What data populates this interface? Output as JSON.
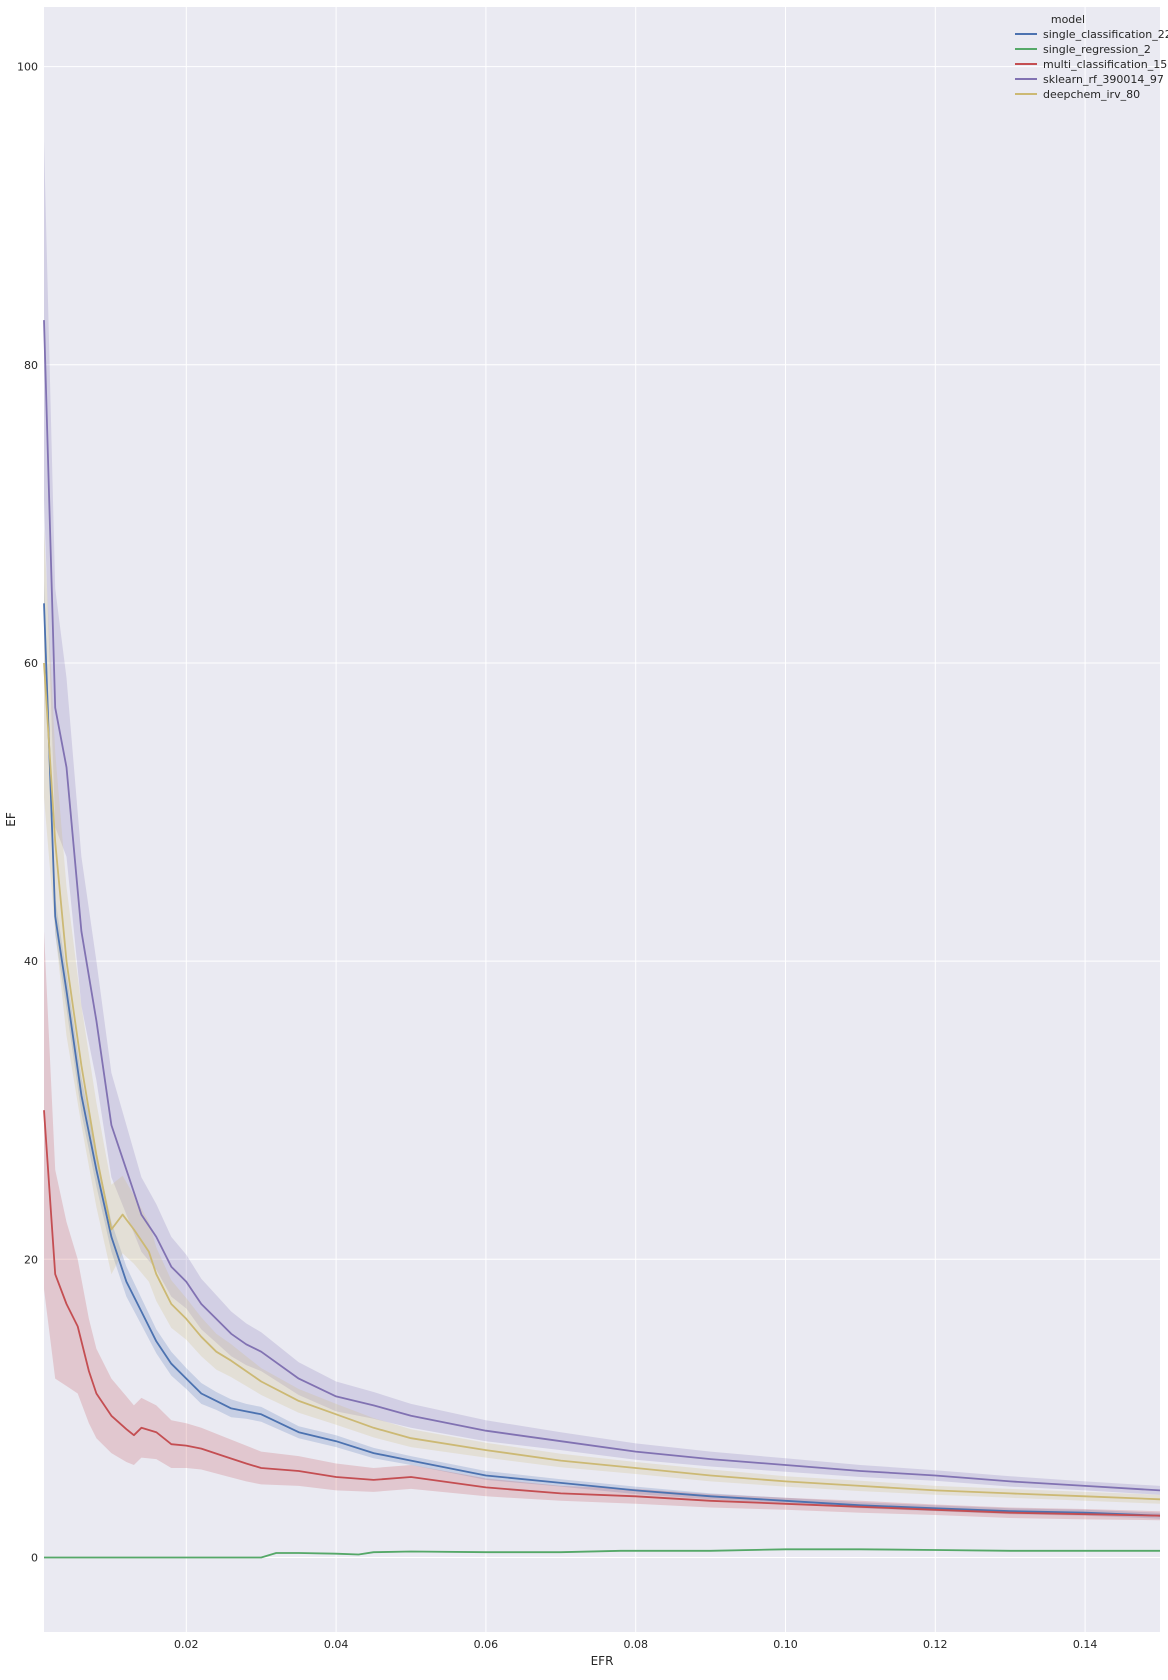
{
  "chart_data": {
    "type": "line",
    "title": "",
    "xlabel": "EFR",
    "ylabel": "EF",
    "xlim": [
      0.001,
      0.15
    ],
    "ylim": [
      -5,
      104
    ],
    "xticks": [
      0.02,
      0.04,
      0.06,
      0.08,
      0.1,
      0.12,
      0.14
    ],
    "xtick_labels": [
      "0.02",
      "0.04",
      "0.06",
      "0.08",
      "0.10",
      "0.12",
      "0.14"
    ],
    "yticks": [
      0,
      20,
      40,
      60,
      80,
      100
    ],
    "ytick_labels": [
      "0",
      "20",
      "40",
      "60",
      "80",
      "100"
    ],
    "grid": true,
    "background": "#eaeaf2",
    "legend": {
      "title": "model",
      "position": "top-right"
    },
    "confidence_bands": true,
    "series": [
      {
        "name": "single_classification_22",
        "color": "#4c72b0",
        "x": [
          0.001,
          0.0025,
          0.004,
          0.006,
          0.008,
          0.01,
          0.012,
          0.014,
          0.016,
          0.018,
          0.02,
          0.022,
          0.024,
          0.026,
          0.028,
          0.03,
          0.035,
          0.04,
          0.045,
          0.05,
          0.06,
          0.07,
          0.08,
          0.09,
          0.1,
          0.11,
          0.12,
          0.13,
          0.14,
          0.15
        ],
        "y": [
          64,
          43,
          38,
          31,
          26,
          21.5,
          18.5,
          16.5,
          14.5,
          13,
          12,
          11,
          10.5,
          10,
          9.8,
          9.6,
          8.4,
          7.8,
          7,
          6.5,
          5.5,
          5,
          4.5,
          4.1,
          3.8,
          3.5,
          3.3,
          3.1,
          3,
          2.8
        ],
        "band": [
          1.5,
          1.2,
          1.2,
          1.2,
          1.1,
          1,
          1,
          0.9,
          0.8,
          0.8,
          0.7,
          0.7,
          0.6,
          0.6,
          0.5,
          0.5,
          0.4,
          0.4,
          0.35,
          0.3,
          0.3,
          0.25,
          0.25,
          0.2,
          0.2,
          0.2,
          0.2,
          0.2,
          0.2,
          0.2
        ]
      },
      {
        "name": "single_regression_2",
        "color": "#55a868",
        "x": [
          0.001,
          0.005,
          0.01,
          0.02,
          0.03,
          0.032,
          0.035,
          0.04,
          0.043,
          0.045,
          0.05,
          0.06,
          0.07,
          0.078,
          0.09,
          0.1,
          0.11,
          0.12,
          0.13,
          0.14,
          0.15
        ],
        "y": [
          0,
          0,
          0,
          0,
          0,
          0.3,
          0.3,
          0.25,
          0.2,
          0.35,
          0.4,
          0.35,
          0.35,
          0.45,
          0.45,
          0.55,
          0.55,
          0.5,
          0.45,
          0.45,
          0.45
        ],
        "band": [
          0,
          0,
          0,
          0,
          0,
          0.05,
          0.05,
          0.05,
          0.05,
          0.05,
          0.05,
          0.05,
          0.05,
          0.05,
          0.05,
          0.05,
          0.05,
          0.05,
          0.05,
          0.05,
          0.05
        ]
      },
      {
        "name": "multi_classification_15",
        "color": "#c44e52",
        "x": [
          0.001,
          0.0025,
          0.004,
          0.0055,
          0.007,
          0.008,
          0.01,
          0.012,
          0.013,
          0.014,
          0.016,
          0.018,
          0.02,
          0.022,
          0.025,
          0.028,
          0.03,
          0.035,
          0.04,
          0.045,
          0.05,
          0.06,
          0.07,
          0.08,
          0.09,
          0.1,
          0.11,
          0.12,
          0.13,
          0.14,
          0.15
        ],
        "y": [
          30,
          19,
          17,
          15.5,
          12.5,
          11,
          9.5,
          8.6,
          8.2,
          8.7,
          8.4,
          7.6,
          7.5,
          7.3,
          6.8,
          6.3,
          6,
          5.8,
          5.4,
          5.2,
          5.4,
          4.7,
          4.3,
          4.1,
          3.8,
          3.6,
          3.4,
          3.2,
          3,
          2.9,
          2.8
        ],
        "band": [
          12,
          7,
          5.5,
          4.5,
          3.5,
          3,
          2.5,
          2.2,
          2,
          2,
          1.8,
          1.6,
          1.5,
          1.4,
          1.3,
          1.2,
          1.1,
          1,
          0.9,
          0.8,
          0.8,
          0.6,
          0.5,
          0.5,
          0.45,
          0.4,
          0.4,
          0.35,
          0.35,
          0.35,
          0.3
        ]
      },
      {
        "name": "sklearn_rf_390014_97",
        "color": "#8172b2",
        "x": [
          0.001,
          0.0025,
          0.004,
          0.006,
          0.008,
          0.01,
          0.012,
          0.014,
          0.016,
          0.018,
          0.02,
          0.022,
          0.024,
          0.026,
          0.028,
          0.03,
          0.035,
          0.04,
          0.045,
          0.05,
          0.06,
          0.07,
          0.08,
          0.09,
          0.1,
          0.11,
          0.12,
          0.13,
          0.14,
          0.15
        ],
        "y": [
          83,
          57,
          53,
          42,
          36,
          29,
          26,
          23,
          21.5,
          19.5,
          18.5,
          17,
          16,
          15,
          14.3,
          13.8,
          12,
          10.8,
          10.2,
          9.5,
          8.5,
          7.8,
          7.1,
          6.6,
          6.2,
          5.8,
          5.5,
          5.1,
          4.8,
          4.5
        ],
        "band": [
          12,
          8,
          6,
          5,
          4,
          3.5,
          3,
          2.5,
          2.2,
          2,
          1.8,
          1.7,
          1.6,
          1.5,
          1.4,
          1.3,
          1.1,
          1,
          0.9,
          0.8,
          0.7,
          0.6,
          0.55,
          0.5,
          0.45,
          0.4,
          0.35,
          0.35,
          0.3,
          0.3
        ]
      },
      {
        "name": "deepchem_irv_80",
        "color": "#ccb974",
        "x": [
          0.001,
          0.0025,
          0.004,
          0.006,
          0.008,
          0.01,
          0.0115,
          0.013,
          0.015,
          0.016,
          0.018,
          0.02,
          0.022,
          0.024,
          0.026,
          0.028,
          0.03,
          0.035,
          0.04,
          0.045,
          0.05,
          0.06,
          0.07,
          0.08,
          0.09,
          0.1,
          0.11,
          0.12,
          0.13,
          0.14,
          0.15
        ],
        "y": [
          60,
          48,
          40,
          33,
          27,
          22,
          23,
          22,
          20.5,
          19,
          17,
          16,
          14.8,
          13.8,
          13.2,
          12.5,
          11.8,
          10.5,
          9.6,
          8.7,
          8,
          7.2,
          6.5,
          6,
          5.5,
          5.1,
          4.8,
          4.5,
          4.3,
          4.1,
          3.9
        ],
        "band": [
          9,
          6,
          5,
          4,
          3.5,
          3,
          2.6,
          2.3,
          2,
          1.8,
          1.6,
          1.4,
          1.3,
          1.2,
          1.1,
          1,
          0.9,
          0.8,
          0.7,
          0.65,
          0.6,
          0.5,
          0.45,
          0.4,
          0.4,
          0.35,
          0.35,
          0.3,
          0.3,
          0.3,
          0.3
        ]
      }
    ]
  }
}
